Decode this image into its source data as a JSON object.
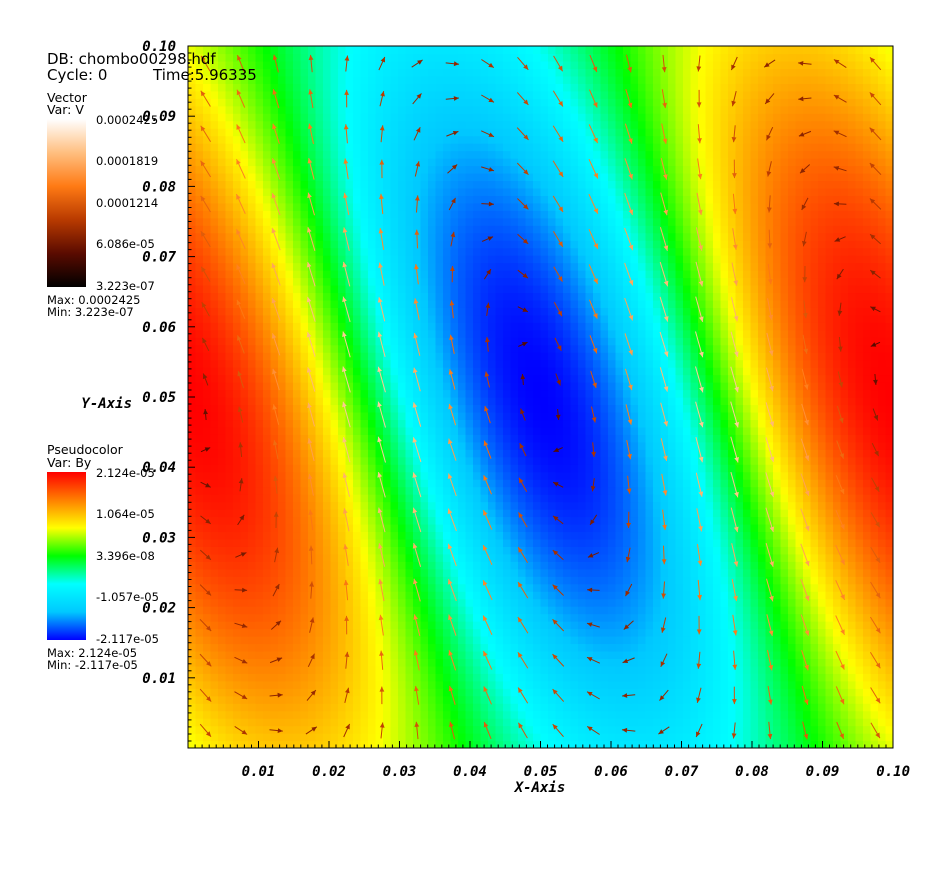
{
  "header": {
    "db": "DB: chombo00298.hdf",
    "cycle": "Cycle: 0",
    "time": "Time:5.96335"
  },
  "legend_vector": {
    "title": "Vector",
    "var": "Var: V",
    "ticks": [
      "0.0002425",
      "0.0001819",
      "0.0001214",
      "6.086e-05",
      "3.223e-07"
    ],
    "max": "Max:  0.0002425",
    "min": "Min:  3.223e-07",
    "colors": [
      "#000000",
      "#5a0b00",
      "#b83a00",
      "#ff7a14",
      "#ffbf80",
      "#ffffff"
    ]
  },
  "legend_pseudocolor": {
    "title": "Pseudocolor",
    "var": "Var: By",
    "ticks": [
      "2.124e-05",
      "1.064e-05",
      "3.396e-08",
      "-1.057e-05",
      "-2.117e-05"
    ],
    "max": "Max:  2.124e-05",
    "min": "Min: -2.117e-05",
    "colors": [
      "#0000ff",
      "#00c8ff",
      "#00ffff",
      "#00ff00",
      "#ffff00",
      "#ff7f00",
      "#ff0000"
    ]
  },
  "chart_data": {
    "type": "heatmap",
    "title": "",
    "xlabel": "X-Axis",
    "ylabel": "Y-Axis",
    "xlim": [
      0,
      0.1
    ],
    "ylim": [
      0,
      0.1
    ],
    "x_ticks": [
      "0.01",
      "0.02",
      "0.03",
      "0.04",
      "0.05",
      "0.06",
      "0.07",
      "0.08",
      "0.09",
      "0.10"
    ],
    "y_ticks": [
      "0.01",
      "0.02",
      "0.03",
      "0.04",
      "0.05",
      "0.06",
      "0.07",
      "0.08",
      "0.09",
      "0.10"
    ],
    "x_tick_values": [
      0.01,
      0.02,
      0.03,
      0.04,
      0.05,
      0.06,
      0.07,
      0.08,
      0.09,
      0.1
    ],
    "y_tick_values": [
      0.01,
      0.02,
      0.03,
      0.04,
      0.05,
      0.06,
      0.07,
      0.08,
      0.09,
      0.1
    ],
    "field": {
      "variable": "By",
      "min": -2.117e-05,
      "max": 2.124e-05,
      "features": [
        {
          "kind": "maximum",
          "x": 0.0,
          "y": 0.05,
          "value": 2.124e-05
        },
        {
          "kind": "maximum",
          "x": 0.1,
          "y": 0.05,
          "value": 2.124e-05
        },
        {
          "kind": "minimum",
          "x": 0.05,
          "y": 0.05,
          "value": -2.117e-05
        }
      ]
    },
    "vectors": {
      "variable": "V",
      "min": 3.223e-07,
      "max": 0.0002425,
      "pattern": "clockwise vortex around minimum at (0.05, 0.05): downward flow near x=0.065-0.08, upward flow near x=0.02-0.035"
    }
  }
}
